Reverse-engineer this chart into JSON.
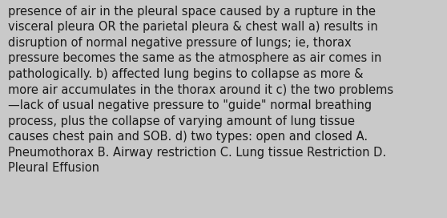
{
  "lines": [
    "presence of air in the pleural space caused by a rupture in the",
    "visceral pleura OR the parietal pleura & chest wall a) results in",
    "disruption of normal negative pressure of lungs; ie, thorax",
    "pressure becomes the same as the atmosphere as air comes in",
    "pathologically. b) affected lung begins to collapse as more &",
    "more air accumulates in the thorax around it c) the two problems",
    "—lack of usual negative pressure to \"guide\" normal breathing",
    "process, plus the collapse of varying amount of lung tissue",
    "causes chest pain and SOB. d) two types: open and closed A.",
    "Pneumothorax B. Airway restriction C. Lung tissue Restriction D.",
    "Pleural Effusion"
  ],
  "bg_color": "#c9c9c9",
  "text_color": "#1a1a1a",
  "font_size": 10.5,
  "fig_width": 5.58,
  "fig_height": 2.72,
  "dpi": 100
}
